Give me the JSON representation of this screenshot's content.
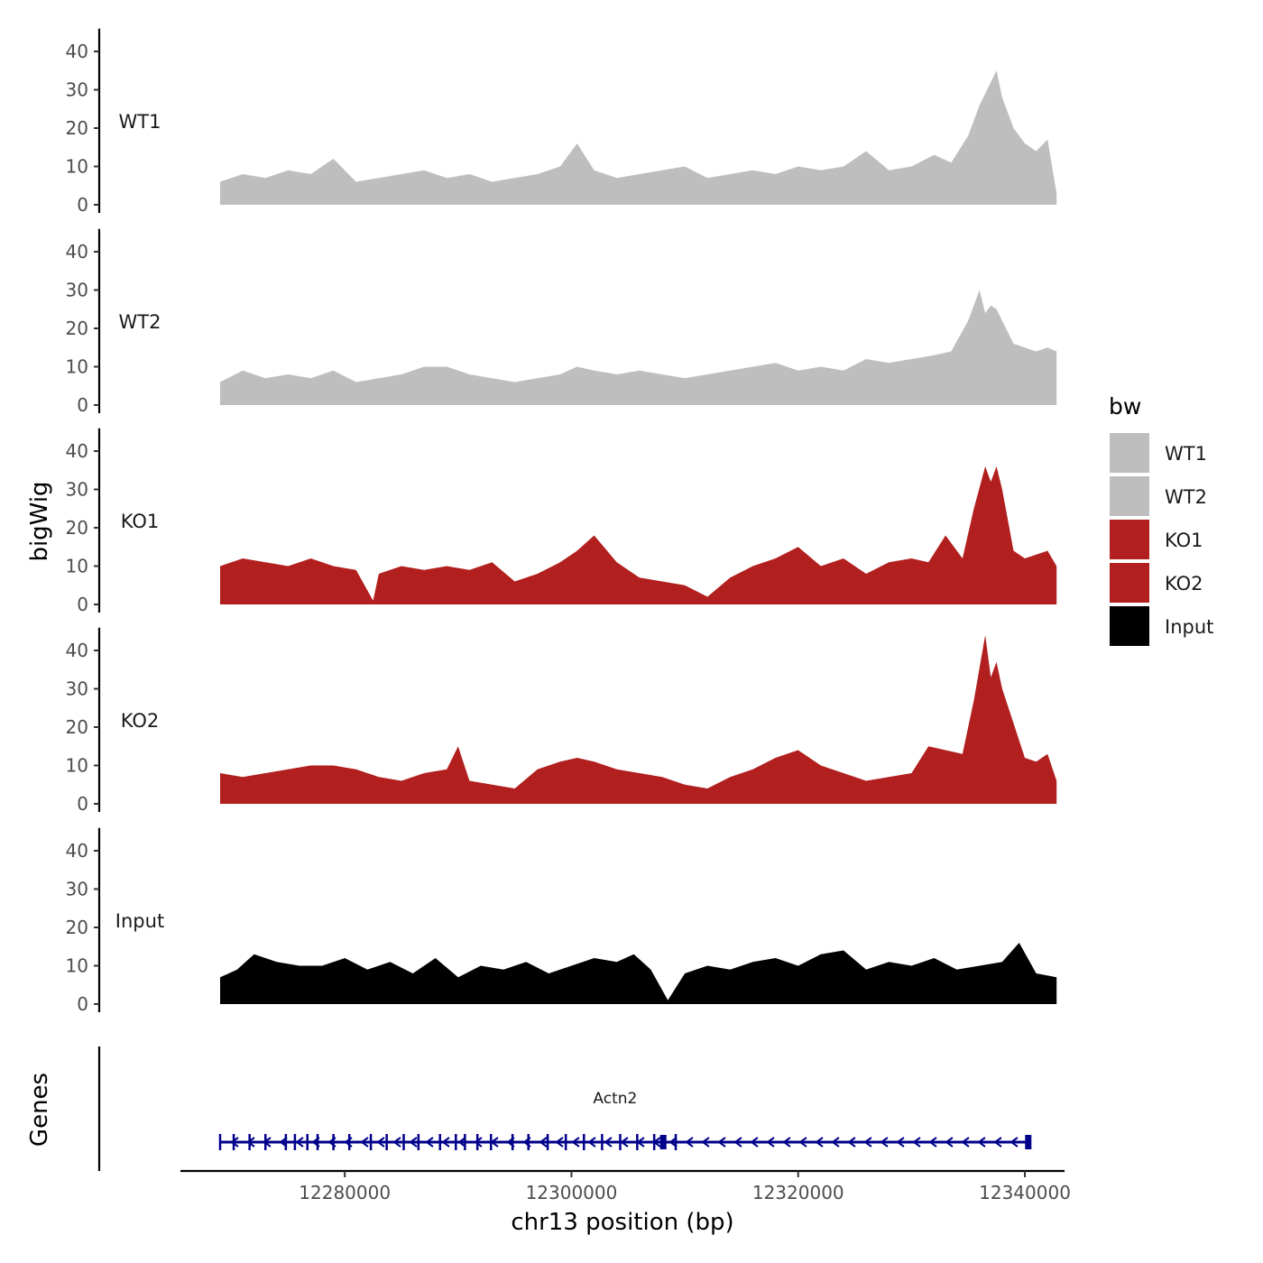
{
  "chart_data": {
    "type": "area",
    "description_kind": "genome browser coverage tracks",
    "xlabel": "chr13 position (bp)",
    "ylabel": "bigWig",
    "genes_ylabel": "Genes",
    "xlim": [
      12265500,
      12343500
    ],
    "data_xrange": [
      12269000,
      12342800
    ],
    "x_ticks": [
      12280000,
      12300000,
      12320000,
      12340000
    ],
    "x_tick_labels": [
      "12280000",
      "12300000",
      "12320000",
      "12340000"
    ],
    "ylim": [
      0,
      45
    ],
    "y_ticks": [
      0,
      10,
      20,
      30,
      40
    ],
    "y_tick_labels": [
      "0",
      "10",
      "20",
      "30",
      "40"
    ],
    "legend": {
      "title": "bw",
      "entries": [
        {
          "label": "WT1",
          "color": "#BEBEBE"
        },
        {
          "label": "WT2",
          "color": "#BEBEBE"
        },
        {
          "label": "KO1",
          "color": "#B21F1F"
        },
        {
          "label": "KO2",
          "color": "#B21F1F"
        },
        {
          "label": "Input",
          "color": "#000000"
        }
      ]
    },
    "series": [
      {
        "name": "WT1",
        "color": "#BEBEBE",
        "x": [
          12269000,
          12271000,
          12273000,
          12275000,
          12277000,
          12279000,
          12281000,
          12283000,
          12285000,
          12287000,
          12289000,
          12291000,
          12293000,
          12295000,
          12297000,
          12299000,
          12300500,
          12302000,
          12304000,
          12306000,
          12308000,
          12310000,
          12312000,
          12314000,
          12316000,
          12318000,
          12320000,
          12322000,
          12324000,
          12326000,
          12328000,
          12330000,
          12332000,
          12333500,
          12335000,
          12336000,
          12337000,
          12337500,
          12338000,
          12339000,
          12340000,
          12341000,
          12342000,
          12342800
        ],
        "y": [
          6,
          8,
          7,
          9,
          8,
          12,
          6,
          7,
          8,
          9,
          7,
          8,
          6,
          7,
          8,
          10,
          16,
          9,
          7,
          8,
          9,
          10,
          7,
          8,
          9,
          8,
          10,
          9,
          10,
          14,
          9,
          10,
          13,
          11,
          18,
          26,
          32,
          35,
          28,
          20,
          16,
          14,
          17,
          3
        ]
      },
      {
        "name": "WT2",
        "color": "#BEBEBE",
        "x": [
          12269000,
          12271000,
          12273000,
          12275000,
          12277000,
          12279000,
          12281000,
          12283000,
          12285000,
          12287000,
          12289000,
          12291000,
          12293000,
          12295000,
          12297000,
          12299000,
          12300500,
          12302000,
          12304000,
          12306000,
          12308000,
          12310000,
          12312000,
          12314000,
          12316000,
          12318000,
          12320000,
          12322000,
          12324000,
          12326000,
          12328000,
          12330000,
          12332000,
          12333500,
          12335000,
          12336000,
          12336500,
          12337000,
          12337500,
          12338000,
          12339000,
          12340000,
          12341000,
          12342000,
          12342800
        ],
        "y": [
          6,
          9,
          7,
          8,
          7,
          9,
          6,
          7,
          8,
          10,
          10,
          8,
          7,
          6,
          7,
          8,
          10,
          9,
          8,
          9,
          8,
          7,
          8,
          9,
          10,
          11,
          9,
          10,
          9,
          12,
          11,
          12,
          13,
          14,
          22,
          30,
          24,
          26,
          25,
          22,
          16,
          15,
          14,
          15,
          14
        ]
      },
      {
        "name": "KO1",
        "color": "#B21F1F",
        "x": [
          12269000,
          12271000,
          12273000,
          12275000,
          12277000,
          12279000,
          12281000,
          12282500,
          12283000,
          12285000,
          12287000,
          12289000,
          12291000,
          12293000,
          12295000,
          12297000,
          12299000,
          12300500,
          12302000,
          12304000,
          12306000,
          12308000,
          12310000,
          12312000,
          12314000,
          12316000,
          12318000,
          12320000,
          12322000,
          12324000,
          12326000,
          12328000,
          12330000,
          12331500,
          12333000,
          12334500,
          12335500,
          12336500,
          12337000,
          12337500,
          12338000,
          12339000,
          12340000,
          12341000,
          12342000,
          12342800
        ],
        "y": [
          10,
          12,
          11,
          10,
          12,
          10,
          9,
          1,
          8,
          10,
          9,
          10,
          9,
          11,
          6,
          8,
          11,
          14,
          18,
          11,
          7,
          6,
          5,
          2,
          7,
          10,
          12,
          15,
          10,
          12,
          8,
          11,
          12,
          11,
          18,
          12,
          25,
          36,
          32,
          36,
          30,
          14,
          12,
          13,
          14,
          10
        ]
      },
      {
        "name": "KO2",
        "color": "#B21F1F",
        "x": [
          12269000,
          12271000,
          12273000,
          12275000,
          12277000,
          12279000,
          12281000,
          12283000,
          12285000,
          12287000,
          12289000,
          12290000,
          12291000,
          12293000,
          12295000,
          12297000,
          12299000,
          12300500,
          12302000,
          12304000,
          12306000,
          12308000,
          12310000,
          12312000,
          12314000,
          12316000,
          12318000,
          12320000,
          12322000,
          12324000,
          12326000,
          12328000,
          12330000,
          12331500,
          12333000,
          12334500,
          12335500,
          12336500,
          12337000,
          12337500,
          12338000,
          12339000,
          12340000,
          12341000,
          12342000,
          12342800
        ],
        "y": [
          8,
          7,
          8,
          9,
          10,
          10,
          9,
          7,
          6,
          8,
          9,
          15,
          6,
          5,
          4,
          9,
          11,
          12,
          11,
          9,
          8,
          7,
          5,
          4,
          7,
          9,
          12,
          14,
          10,
          8,
          6,
          7,
          8,
          15,
          14,
          13,
          27,
          44,
          33,
          37,
          30,
          21,
          12,
          11,
          13,
          6
        ]
      },
      {
        "name": "Input",
        "color": "#000000",
        "x": [
          12269000,
          12270500,
          12272000,
          12274000,
          12276000,
          12278000,
          12280000,
          12282000,
          12284000,
          12286000,
          12288000,
          12290000,
          12292000,
          12294000,
          12296000,
          12298000,
          12300000,
          12302000,
          12304000,
          12305500,
          12307000,
          12308500,
          12310000,
          12312000,
          12314000,
          12316000,
          12318000,
          12320000,
          12322000,
          12324000,
          12326000,
          12328000,
          12330000,
          12332000,
          12334000,
          12336000,
          12338000,
          12339500,
          12341000,
          12342800
        ],
        "y": [
          7,
          9,
          13,
          11,
          10,
          10,
          12,
          9,
          11,
          8,
          12,
          7,
          10,
          9,
          11,
          8,
          10,
          12,
          11,
          13,
          9,
          1,
          8,
          10,
          9,
          11,
          12,
          10,
          13,
          14,
          9,
          11,
          10,
          12,
          9,
          10,
          11,
          16,
          8,
          7
        ]
      }
    ],
    "tracks": [
      {
        "label": "WT1"
      },
      {
        "label": "WT2"
      },
      {
        "label": "KO1"
      },
      {
        "label": "KO2"
      },
      {
        "label": "Input"
      }
    ],
    "genes": [
      {
        "name": "Actn2",
        "strand": "-",
        "start": 12269000,
        "end": 12340300,
        "color": "#00008B",
        "exons": [
          12269000,
          12270200,
          12271600,
          12273000,
          12274800,
          12275600,
          12276700,
          12277600,
          12279000,
          12280400,
          12282300,
          12283700,
          12285200,
          12286500,
          12288400,
          12289800,
          12290600,
          12291700,
          12292900,
          12294800,
          12296200,
          12297900,
          12299500,
          12301100,
          12302700,
          12304300,
          12305800,
          12307300,
          12308100,
          12309200,
          12340300
        ],
        "major_exons": [
          12308100,
          12340300
        ]
      }
    ]
  }
}
